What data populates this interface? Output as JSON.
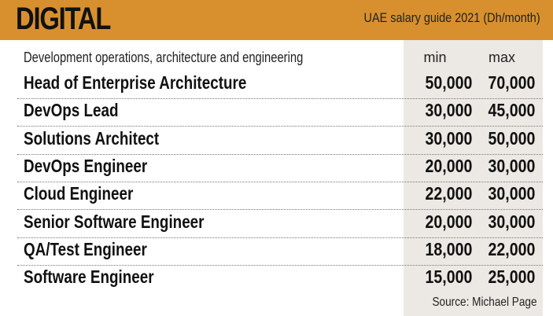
{
  "header": {
    "title": "DIGITAL",
    "subtitle": "UAE salary guide 2021 (Dh/month)"
  },
  "table": {
    "section_label": "Development operations, architecture and engineering",
    "columns": {
      "min": "min",
      "max": "max"
    },
    "rows": [
      {
        "job": "Head of Enterprise Architecture",
        "min": "50,000",
        "max": "70,000"
      },
      {
        "job": "DevOps Lead",
        "min": "30,000",
        "max": "45,000"
      },
      {
        "job": "Solutions Architect",
        "min": "30,000",
        "max": "50,000"
      },
      {
        "job": "DevOps Engineer",
        "min": "20,000",
        "max": "30,000"
      },
      {
        "job": "Cloud Engineer",
        "min": "22,000",
        "max": "30,000"
      },
      {
        "job": "Senior Software Engineer",
        "min": "20,000",
        "max": "30,000"
      },
      {
        "job": "QA/Test Engineer",
        "min": "18,000",
        "max": "22,000"
      },
      {
        "job": "Software Engineer",
        "min": "15,000",
        "max": "25,000"
      }
    ]
  },
  "source": "Source: Michael Page",
  "colors": {
    "header_bg": "#d8902f",
    "column_shade": "#ece9e4"
  }
}
